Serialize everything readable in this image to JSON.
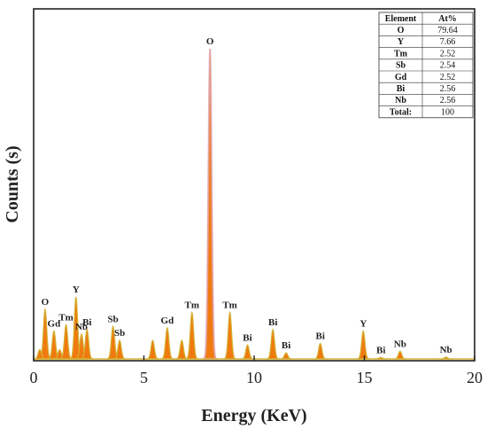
{
  "chart_data": {
    "type": "area",
    "xlabel": "Energy (KeV)",
    "ylabel": "Counts (s)",
    "xlim": [
      0,
      20
    ],
    "ylim": [
      0,
      1
    ],
    "xticks": [
      "0",
      "5",
      "10",
      "15",
      "20"
    ],
    "grid": false,
    "colors": {
      "fill": "#f07a10",
      "outline": "#d4b030",
      "glow": "#e8a0e8",
      "axis": "#222222"
    },
    "peaks": [
      {
        "x": 0.52,
        "y": 0.16,
        "label": "O"
      },
      {
        "x": 0.28,
        "y": 0.03,
        "label": ""
      },
      {
        "x": 0.92,
        "y": 0.09,
        "label": "Gd"
      },
      {
        "x": 1.18,
        "y": 0.03,
        "label": ""
      },
      {
        "x": 1.47,
        "y": 0.11,
        "label": "Tm"
      },
      {
        "x": 1.92,
        "y": 0.2,
        "label": "Y"
      },
      {
        "x": 2.17,
        "y": 0.08,
        "label": "Nb"
      },
      {
        "x": 2.42,
        "y": 0.095,
        "label": "Bi"
      },
      {
        "x": 3.6,
        "y": 0.105,
        "label": "Sb"
      },
      {
        "x": 3.9,
        "y": 0.06,
        "label": "Sb"
      },
      {
        "x": 5.4,
        "y": 0.06,
        "label": ""
      },
      {
        "x": 6.06,
        "y": 0.1,
        "label": "Gd"
      },
      {
        "x": 6.72,
        "y": 0.06,
        "label": ""
      },
      {
        "x": 7.18,
        "y": 0.15,
        "label": "Tm"
      },
      {
        "x": 8.0,
        "y": 1.0,
        "label": "O"
      },
      {
        "x": 8.9,
        "y": 0.15,
        "label": "Tm"
      },
      {
        "x": 9.7,
        "y": 0.045,
        "label": "Bi"
      },
      {
        "x": 10.85,
        "y": 0.095,
        "label": "Bi"
      },
      {
        "x": 11.45,
        "y": 0.02,
        "label": "Bi"
      },
      {
        "x": 13.0,
        "y": 0.05,
        "label": "Bi"
      },
      {
        "x": 14.95,
        "y": 0.09,
        "label": "Y"
      },
      {
        "x": 15.75,
        "y": 0.005,
        "label": "Bi"
      },
      {
        "x": 16.62,
        "y": 0.025,
        "label": "Nb"
      },
      {
        "x": 18.7,
        "y": 0.006,
        "label": "Nb"
      }
    ],
    "table": {
      "headers": [
        "Element",
        "At%"
      ],
      "rows": [
        [
          "O",
          "79.64"
        ],
        [
          "Y",
          "7.66"
        ],
        [
          "Tm",
          "2.52"
        ],
        [
          "Sb",
          "2.54"
        ],
        [
          "Gd",
          "2.52"
        ],
        [
          "Bi",
          "2.56"
        ],
        [
          "Nb",
          "2.56"
        ],
        [
          "Total:",
          "100"
        ]
      ]
    }
  }
}
